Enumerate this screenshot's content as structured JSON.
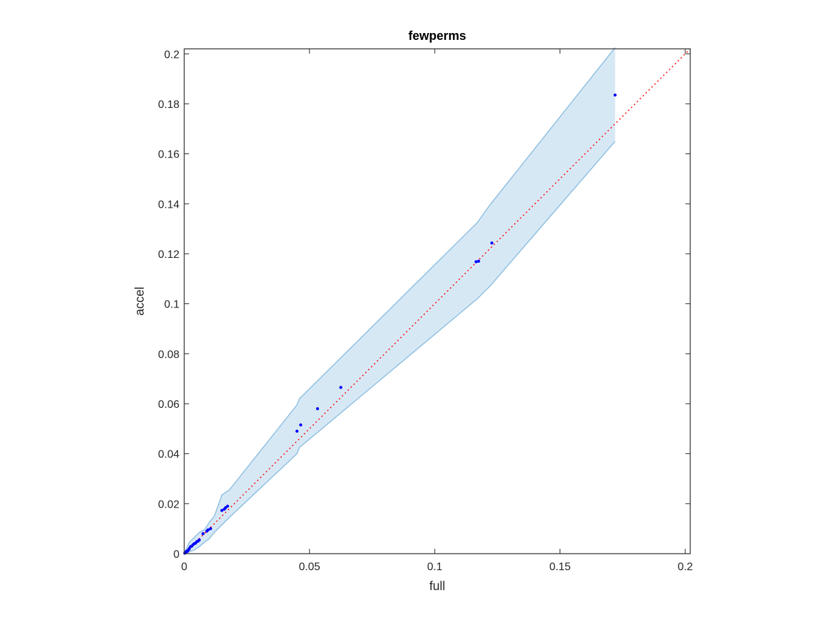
{
  "chart_data": {
    "type": "scatter",
    "title": "fewperms",
    "xlabel": "full",
    "ylabel": "accel",
    "xlim": [
      0,
      0.202
    ],
    "ylim": [
      0,
      0.202
    ],
    "grid": false,
    "x_ticks": [
      0,
      0.05,
      0.1,
      0.15,
      0.2
    ],
    "x_tick_labels": [
      "0",
      "0.05",
      "0.1",
      "0.15",
      "0.2"
    ],
    "y_ticks": [
      0,
      0.02,
      0.04,
      0.06,
      0.08,
      0.1,
      0.12,
      0.14,
      0.16,
      0.18,
      0.2
    ],
    "y_tick_labels": [
      "0",
      "0.02",
      "0.04",
      "0.06",
      "0.08",
      "0.1",
      "0.12",
      "0.14",
      "0.16",
      "0.18",
      "0.2"
    ],
    "colors": {
      "points": "#0000ff",
      "reference_line": "#ff0000",
      "band_fill": "#d7e8f5",
      "band_edge": "#8fc0e0",
      "axes": "#262626"
    },
    "series": [
      {
        "type": "scatter",
        "x": [
          0.0002,
          0.0004,
          0.0006,
          0.0008,
          0.001,
          0.0012,
          0.0015,
          0.0018,
          0.002,
          0.0025,
          0.003,
          0.0035,
          0.004,
          0.0045,
          0.005,
          0.0055,
          0.006,
          0.0075,
          0.009,
          0.0095,
          0.0105,
          0.015,
          0.016,
          0.0165,
          0.0173,
          0.045,
          0.0465,
          0.0532,
          0.0625,
          0.1165,
          0.1175,
          0.1228,
          0.172
        ],
        "y": [
          0.0002,
          0.0005,
          0.0004,
          0.0008,
          0.001,
          0.0009,
          0.0013,
          0.0016,
          0.002,
          0.0028,
          0.003,
          0.0036,
          0.004,
          0.0042,
          0.0048,
          0.005,
          0.0055,
          0.008,
          0.009,
          0.0095,
          0.01,
          0.0173,
          0.0178,
          0.0184,
          0.019,
          0.049,
          0.0515,
          0.058,
          0.0665,
          0.1168,
          0.117,
          0.1243,
          0.1835
        ]
      },
      {
        "type": "line",
        "style": "dotted",
        "x": [
          0,
          0.202
        ],
        "y": [
          0,
          0.202
        ]
      },
      {
        "type": "area",
        "x": [
          0,
          0.002,
          0.004,
          0.006,
          0.008,
          0.01,
          0.012,
          0.014,
          0.015,
          0.018,
          0.045,
          0.046,
          0.117,
          0.122,
          0.172
        ],
        "y_lower": [
          0,
          0.0007,
          0.0015,
          0.0028,
          0.0045,
          0.006,
          0.0085,
          0.0105,
          0.0115,
          0.0145,
          0.04,
          0.0425,
          0.102,
          0.107,
          0.165
        ],
        "y_upper": [
          0,
          0.0045,
          0.0065,
          0.0085,
          0.0095,
          0.0125,
          0.015,
          0.0205,
          0.0235,
          0.0255,
          0.0595,
          0.062,
          0.1325,
          0.1395,
          0.2025
        ]
      }
    ]
  }
}
